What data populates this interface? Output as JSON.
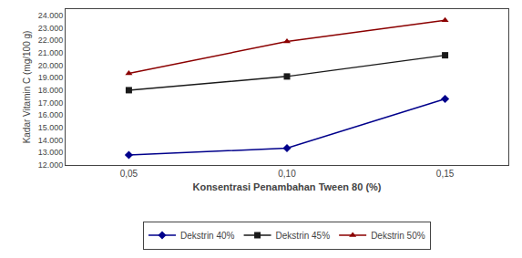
{
  "chart_data": {
    "type": "line",
    "x": [
      0.05,
      0.1,
      0.15
    ],
    "xlabel": "Konsentrasi Penambahan Tween 80 (%)",
    "ylabel": "Kadar Vitamin C (mg/100 g)",
    "xlim": [
      0.03,
      0.17
    ],
    "xticks": [
      {
        "value": 0.05,
        "label": "0,05"
      },
      {
        "value": 0.1,
        "label": "0,10"
      },
      {
        "value": 0.15,
        "label": "0,15"
      }
    ],
    "ylim": [
      12000,
      24500
    ],
    "yticks": [
      {
        "value": 12000,
        "label": "12.000"
      },
      {
        "value": 13000,
        "label": "13.000"
      },
      {
        "value": 14000,
        "label": "14.000"
      },
      {
        "value": 15000,
        "label": "15.000"
      },
      {
        "value": 16000,
        "label": "16.000"
      },
      {
        "value": 17000,
        "label": "17.000"
      },
      {
        "value": 18000,
        "label": "18.000"
      },
      {
        "value": 19000,
        "label": "19.000"
      },
      {
        "value": 20000,
        "label": "20.000"
      },
      {
        "value": 21000,
        "label": "21.000"
      },
      {
        "value": 22000,
        "label": "22.000"
      },
      {
        "value": 23000,
        "label": "23.000"
      },
      {
        "value": 24000,
        "label": "24.000"
      }
    ],
    "series": [
      {
        "name": "Dekstrin 40%",
        "color": "#00008B",
        "marker": "diamond",
        "values": [
          12800,
          13350,
          17300
        ]
      },
      {
        "name": "Dekstrin 45%",
        "color": "#1a1a1a",
        "marker": "square",
        "values": [
          18000,
          19100,
          20800
        ]
      },
      {
        "name": "Dekstrin 50%",
        "color": "#8B0000",
        "marker": "triangle-up",
        "values": [
          19350,
          21900,
          23600
        ]
      }
    ],
    "grid": false,
    "legend": "bottom"
  }
}
